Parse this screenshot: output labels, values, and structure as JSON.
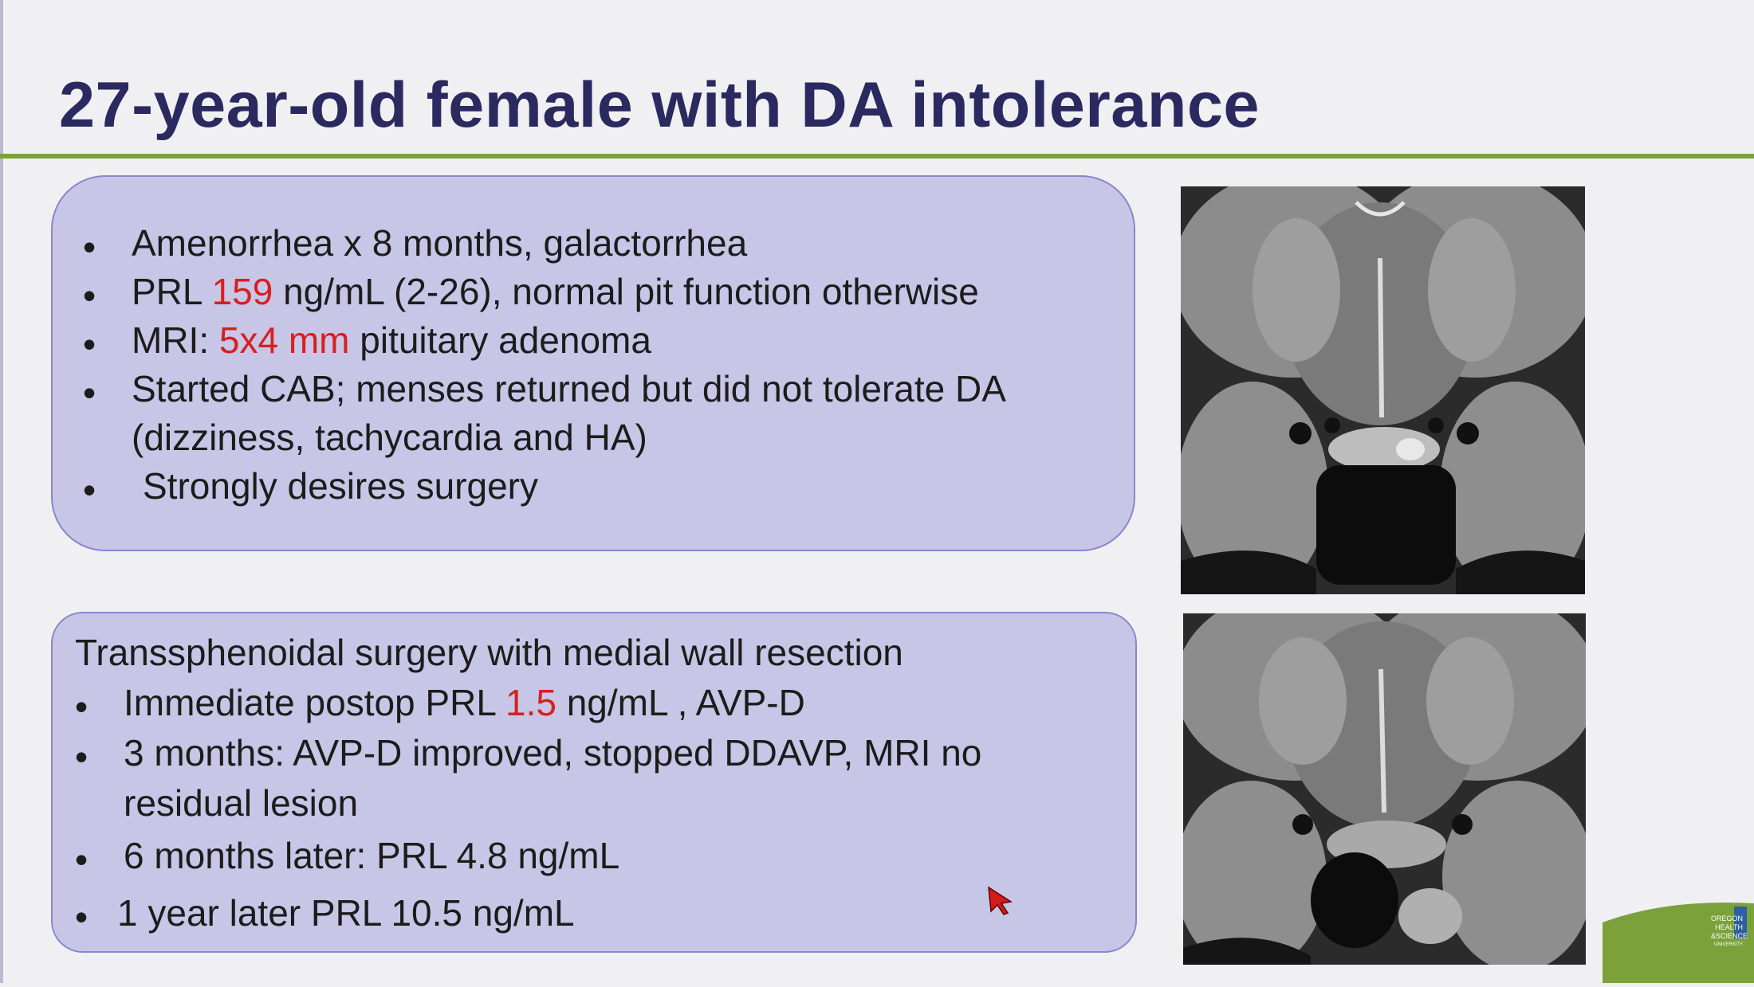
{
  "slide": {
    "title": "27-year-old female with DA intolerance"
  },
  "history": {
    "items": [
      {
        "bullet": "•",
        "text": "Amenorrhea x 8 months, galactorrhea"
      },
      {
        "bullet": "•",
        "pre": "PRL ",
        "highlight": "159",
        "post": " ng/mL (2-26), normal pit function otherwise"
      },
      {
        "bullet": "•",
        "pre": "MRI: ",
        "highlight": "5x4 mm",
        "post": " pituitary adenoma"
      },
      {
        "bullet": "•",
        "text": "Started CAB; menses returned but did not tolerate DA",
        "cont": "(dizziness, tachycardia and HA)"
      },
      {
        "bullet": "•",
        "text": "Strongly desires surgery"
      }
    ]
  },
  "surgery": {
    "heading": "Transsphenoidal surgery with medial wall resection",
    "items": [
      {
        "bullet": "•",
        "pre": "Immediate postop PRL ",
        "highlight": "1.5",
        "post": " ng/mL , AVP-D"
      },
      {
        "bullet": "•",
        "text": "3 months: AVP-D improved, stopped DDAVP, MRI no",
        "cont": "residual lesion"
      },
      {
        "bullet": "•",
        "text": "6 months later: PRL 4.8 ng/mL"
      },
      {
        "bullet": "•",
        "text": "1 year later PRL 10.5 ng/mL"
      }
    ]
  },
  "logo": {
    "lines": [
      "OREGON",
      "HEALTH",
      "&SCIENCE",
      "UNIVERSITY"
    ]
  },
  "colors": {
    "title": "#2a2a60",
    "accent_rule": "#7ba23a",
    "box_fill": "#c8c6e6",
    "box_border": "#8a86cc",
    "highlight": "#d62020"
  }
}
